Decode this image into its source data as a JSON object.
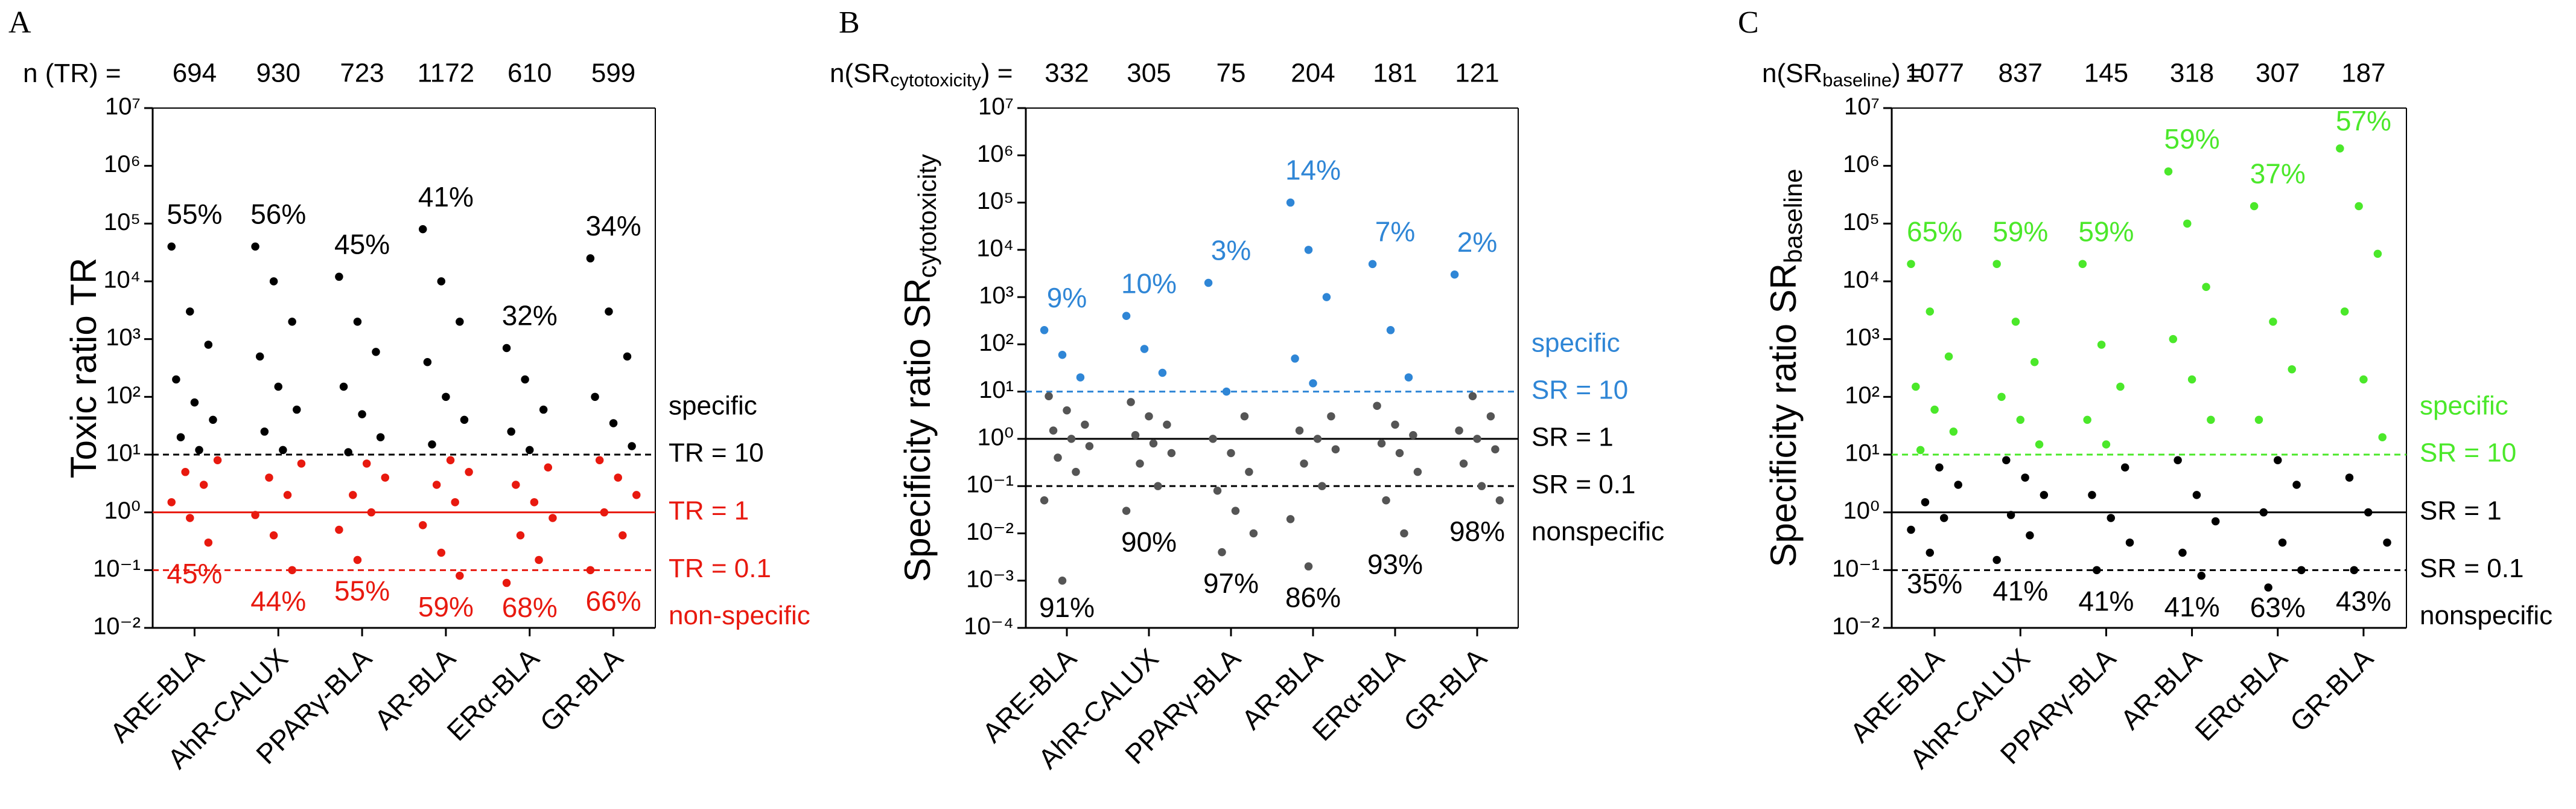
{
  "chart_data": [
    {
      "type": "strip",
      "panel": "A",
      "n_label": {
        "main": "n (TR) ="
      },
      "n": [
        694,
        930,
        723,
        1172,
        610,
        599
      ],
      "categories": [
        "ARE-BLA",
        "AhR-CALUX",
        "PPARγ-BLA",
        "AR-BLA",
        "ERα-BLA",
        "GR-BLA"
      ],
      "ylabel": {
        "main": "Toxic ratio TR"
      },
      "log": true,
      "ylim": [
        0.01,
        10000000
      ],
      "yticks": [
        {
          "value": 0.01,
          "label": "10⁻²"
        },
        {
          "value": 0.1,
          "label": "10⁻¹"
        },
        {
          "value": 1,
          "label": "10⁰"
        },
        {
          "value": 10,
          "label": "10¹"
        },
        {
          "value": 100,
          "label": "10²"
        },
        {
          "value": 1000,
          "label": "10³"
        },
        {
          "value": 10000,
          "label": "10⁴"
        },
        {
          "value": 100000,
          "label": "10⁵"
        },
        {
          "value": 1000000,
          "label": "10⁶"
        },
        {
          "value": 10000000,
          "label": "10⁷"
        }
      ],
      "threshold": 10,
      "color_above": "#000000",
      "color_below": "#e8190f",
      "points": [
        [
          40000,
          3000,
          800,
          200,
          80,
          40,
          20,
          12,
          8,
          5,
          3,
          1.5,
          0.8,
          0.3
        ],
        [
          40000,
          10000,
          2000,
          500,
          150,
          60,
          25,
          12,
          7,
          4,
          2,
          0.9,
          0.4,
          0.1
        ],
        [
          12000,
          2000,
          600,
          150,
          50,
          20,
          11,
          7,
          4,
          2,
          1,
          0.5,
          0.15
        ],
        [
          80000,
          10000,
          2000,
          400,
          100,
          40,
          15,
          8,
          5,
          3,
          1.5,
          0.6,
          0.2,
          0.08
        ],
        [
          700,
          200,
          60,
          25,
          12,
          6,
          3,
          1.5,
          0.8,
          0.4,
          0.15,
          0.06
        ],
        [
          25000,
          3000,
          500,
          100,
          35,
          14,
          8,
          4,
          2,
          1,
          0.4,
          0.1
        ]
      ],
      "upper_labels": [
        "55%",
        "56%",
        "45%",
        "41%",
        "32%",
        "34%"
      ],
      "upper_color": "#000000",
      "lower_labels": [
        "45%",
        "44%",
        "55%",
        "59%",
        "68%",
        "66%"
      ],
      "lower_color": "#e8190f",
      "ref_lines": [
        {
          "value": 10,
          "label": "TR = 10",
          "color": "#000000",
          "dashed": true
        },
        {
          "value": 1,
          "label": "TR = 1",
          "color": "#e8190f",
          "dashed": false
        },
        {
          "value": 0.1,
          "label": "TR = 0.1",
          "color": "#e8190f",
          "dashed": true
        }
      ],
      "above_label": {
        "text": "specific",
        "color": "#000000"
      },
      "below_label": {
        "text": "non-specific",
        "color": "#e8190f"
      }
    },
    {
      "type": "strip",
      "panel": "B",
      "n_label": {
        "main": "n(SR",
        "sub": "cytotoxicity",
        "end": ") ="
      },
      "n": [
        332,
        305,
        75,
        204,
        181,
        121
      ],
      "categories": [
        "ARE-BLA",
        "AhR-CALUX",
        "PPARγ-BLA",
        "AR-BLA",
        "ERα-BLA",
        "GR-BLA"
      ],
      "ylabel": {
        "main": "Specificity ratio SR",
        "sub": "cytotoxicity"
      },
      "log": true,
      "ylim": [
        0.0001,
        10000000
      ],
      "yticks": [
        {
          "value": 0.0001,
          "label": "10⁻⁴"
        },
        {
          "value": 0.001,
          "label": "10⁻³"
        },
        {
          "value": 0.01,
          "label": "10⁻²"
        },
        {
          "value": 0.1,
          "label": "10⁻¹"
        },
        {
          "value": 1,
          "label": "10⁰"
        },
        {
          "value": 10,
          "label": "10¹"
        },
        {
          "value": 100,
          "label": "10²"
        },
        {
          "value": 1000,
          "label": "10³"
        },
        {
          "value": 10000,
          "label": "10⁴"
        },
        {
          "value": 100000,
          "label": "10⁵"
        },
        {
          "value": 1000000,
          "label": "10⁶"
        },
        {
          "value": 10000000,
          "label": "10⁷"
        }
      ],
      "threshold": 10,
      "color_above": "#2f86d6",
      "color_below": "#555555",
      "points": [
        [
          200,
          60,
          20,
          8,
          4,
          2,
          1.5,
          1,
          0.7,
          0.4,
          0.2,
          0.05,
          0.001
        ],
        [
          400,
          80,
          25,
          6,
          3,
          2,
          1.2,
          0.8,
          0.5,
          0.3,
          0.1,
          0.03
        ],
        [
          2000,
          10,
          3,
          1,
          0.5,
          0.2,
          0.08,
          0.03,
          0.01,
          0.004
        ],
        [
          100000,
          10000,
          1000,
          50,
          15,
          3,
          1.5,
          1,
          0.6,
          0.3,
          0.1,
          0.02,
          0.002
        ],
        [
          5000,
          200,
          20,
          5,
          2,
          1.2,
          0.8,
          0.5,
          0.2,
          0.05,
          0.01
        ],
        [
          3000,
          8,
          3,
          1.5,
          1,
          0.6,
          0.3,
          0.1,
          0.05
        ]
      ],
      "upper_labels": [
        "9%",
        "10%",
        "3%",
        "14%",
        "7%",
        "2%"
      ],
      "upper_color": "#2f86d6",
      "lower_labels": [
        "91%",
        "90%",
        "97%",
        "86%",
        "93%",
        "98%"
      ],
      "lower_color": "#000000",
      "ref_lines": [
        {
          "value": 10,
          "label": "SR = 10",
          "color": "#2f86d6",
          "dashed": true
        },
        {
          "value": 1,
          "label": "SR = 1",
          "color": "#000000",
          "dashed": false
        },
        {
          "value": 0.1,
          "label": "SR = 0.1",
          "color": "#000000",
          "dashed": true
        }
      ],
      "above_label": {
        "text": "specific",
        "color": "#2f86d6"
      },
      "below_label": {
        "text": "nonspecific",
        "color": "#000000"
      }
    },
    {
      "type": "strip",
      "panel": "C",
      "n_label": {
        "main": "n(SR",
        "sub": "baseline",
        "end": ") ="
      },
      "n": [
        1077,
        837,
        145,
        318,
        307,
        187
      ],
      "categories": [
        "ARE-BLA",
        "AhR-CALUX",
        "PPARγ-BLA",
        "AR-BLA",
        "ERα-BLA",
        "GR-BLA"
      ],
      "ylabel": {
        "main": "Specificity ratio SR",
        "sub": "baseline"
      },
      "log": true,
      "ylim": [
        0.01,
        10000000
      ],
      "yticks": [
        {
          "value": 0.01,
          "label": "10⁻²"
        },
        {
          "value": 0.1,
          "label": "10⁻¹"
        },
        {
          "value": 1,
          "label": "10⁰"
        },
        {
          "value": 10,
          "label": "10¹"
        },
        {
          "value": 100,
          "label": "10²"
        },
        {
          "value": 1000,
          "label": "10³"
        },
        {
          "value": 10000,
          "label": "10⁴"
        },
        {
          "value": 100000,
          "label": "10⁵"
        },
        {
          "value": 1000000,
          "label": "10⁶"
        },
        {
          "value": 10000000,
          "label": "10⁷"
        }
      ],
      "threshold": 10,
      "color_above": "#4be82a",
      "color_below": "#000000",
      "points": [
        [
          20000,
          3000,
          500,
          150,
          60,
          25,
          12,
          6,
          3,
          1.5,
          0.8,
          0.5,
          0.2
        ],
        [
          20000,
          2000,
          400,
          100,
          40,
          15,
          8,
          4,
          2,
          0.9,
          0.4,
          0.15
        ],
        [
          20000,
          800,
          150,
          40,
          15,
          6,
          2,
          0.8,
          0.3,
          0.1
        ],
        [
          800000,
          100000,
          8000,
          1000,
          200,
          40,
          8,
          2,
          0.7,
          0.2,
          0.08
        ],
        [
          200000,
          2000,
          300,
          40,
          8,
          3,
          1,
          0.3,
          0.1,
          0.05
        ],
        [
          2000000,
          200000,
          30000,
          3000,
          200,
          20,
          4,
          1,
          0.3,
          0.1
        ]
      ],
      "upper_labels": [
        "65%",
        "59%",
        "59%",
        "59%",
        "37%",
        "57%"
      ],
      "upper_color": "#4be82a",
      "lower_labels": [
        "35%",
        "41%",
        "41%",
        "41%",
        "63%",
        "43%"
      ],
      "lower_color": "#000000",
      "ref_lines": [
        {
          "value": 10,
          "label": "SR = 10",
          "color": "#4be82a",
          "dashed": true
        },
        {
          "value": 1,
          "label": "SR = 1",
          "color": "#000000",
          "dashed": false
        },
        {
          "value": 0.1,
          "label": "SR = 0.1",
          "color": "#000000",
          "dashed": true
        }
      ],
      "above_label": {
        "text": "specific",
        "color": "#4be82a"
      },
      "below_label": {
        "text": "nonspecific",
        "color": "#000000"
      }
    }
  ]
}
